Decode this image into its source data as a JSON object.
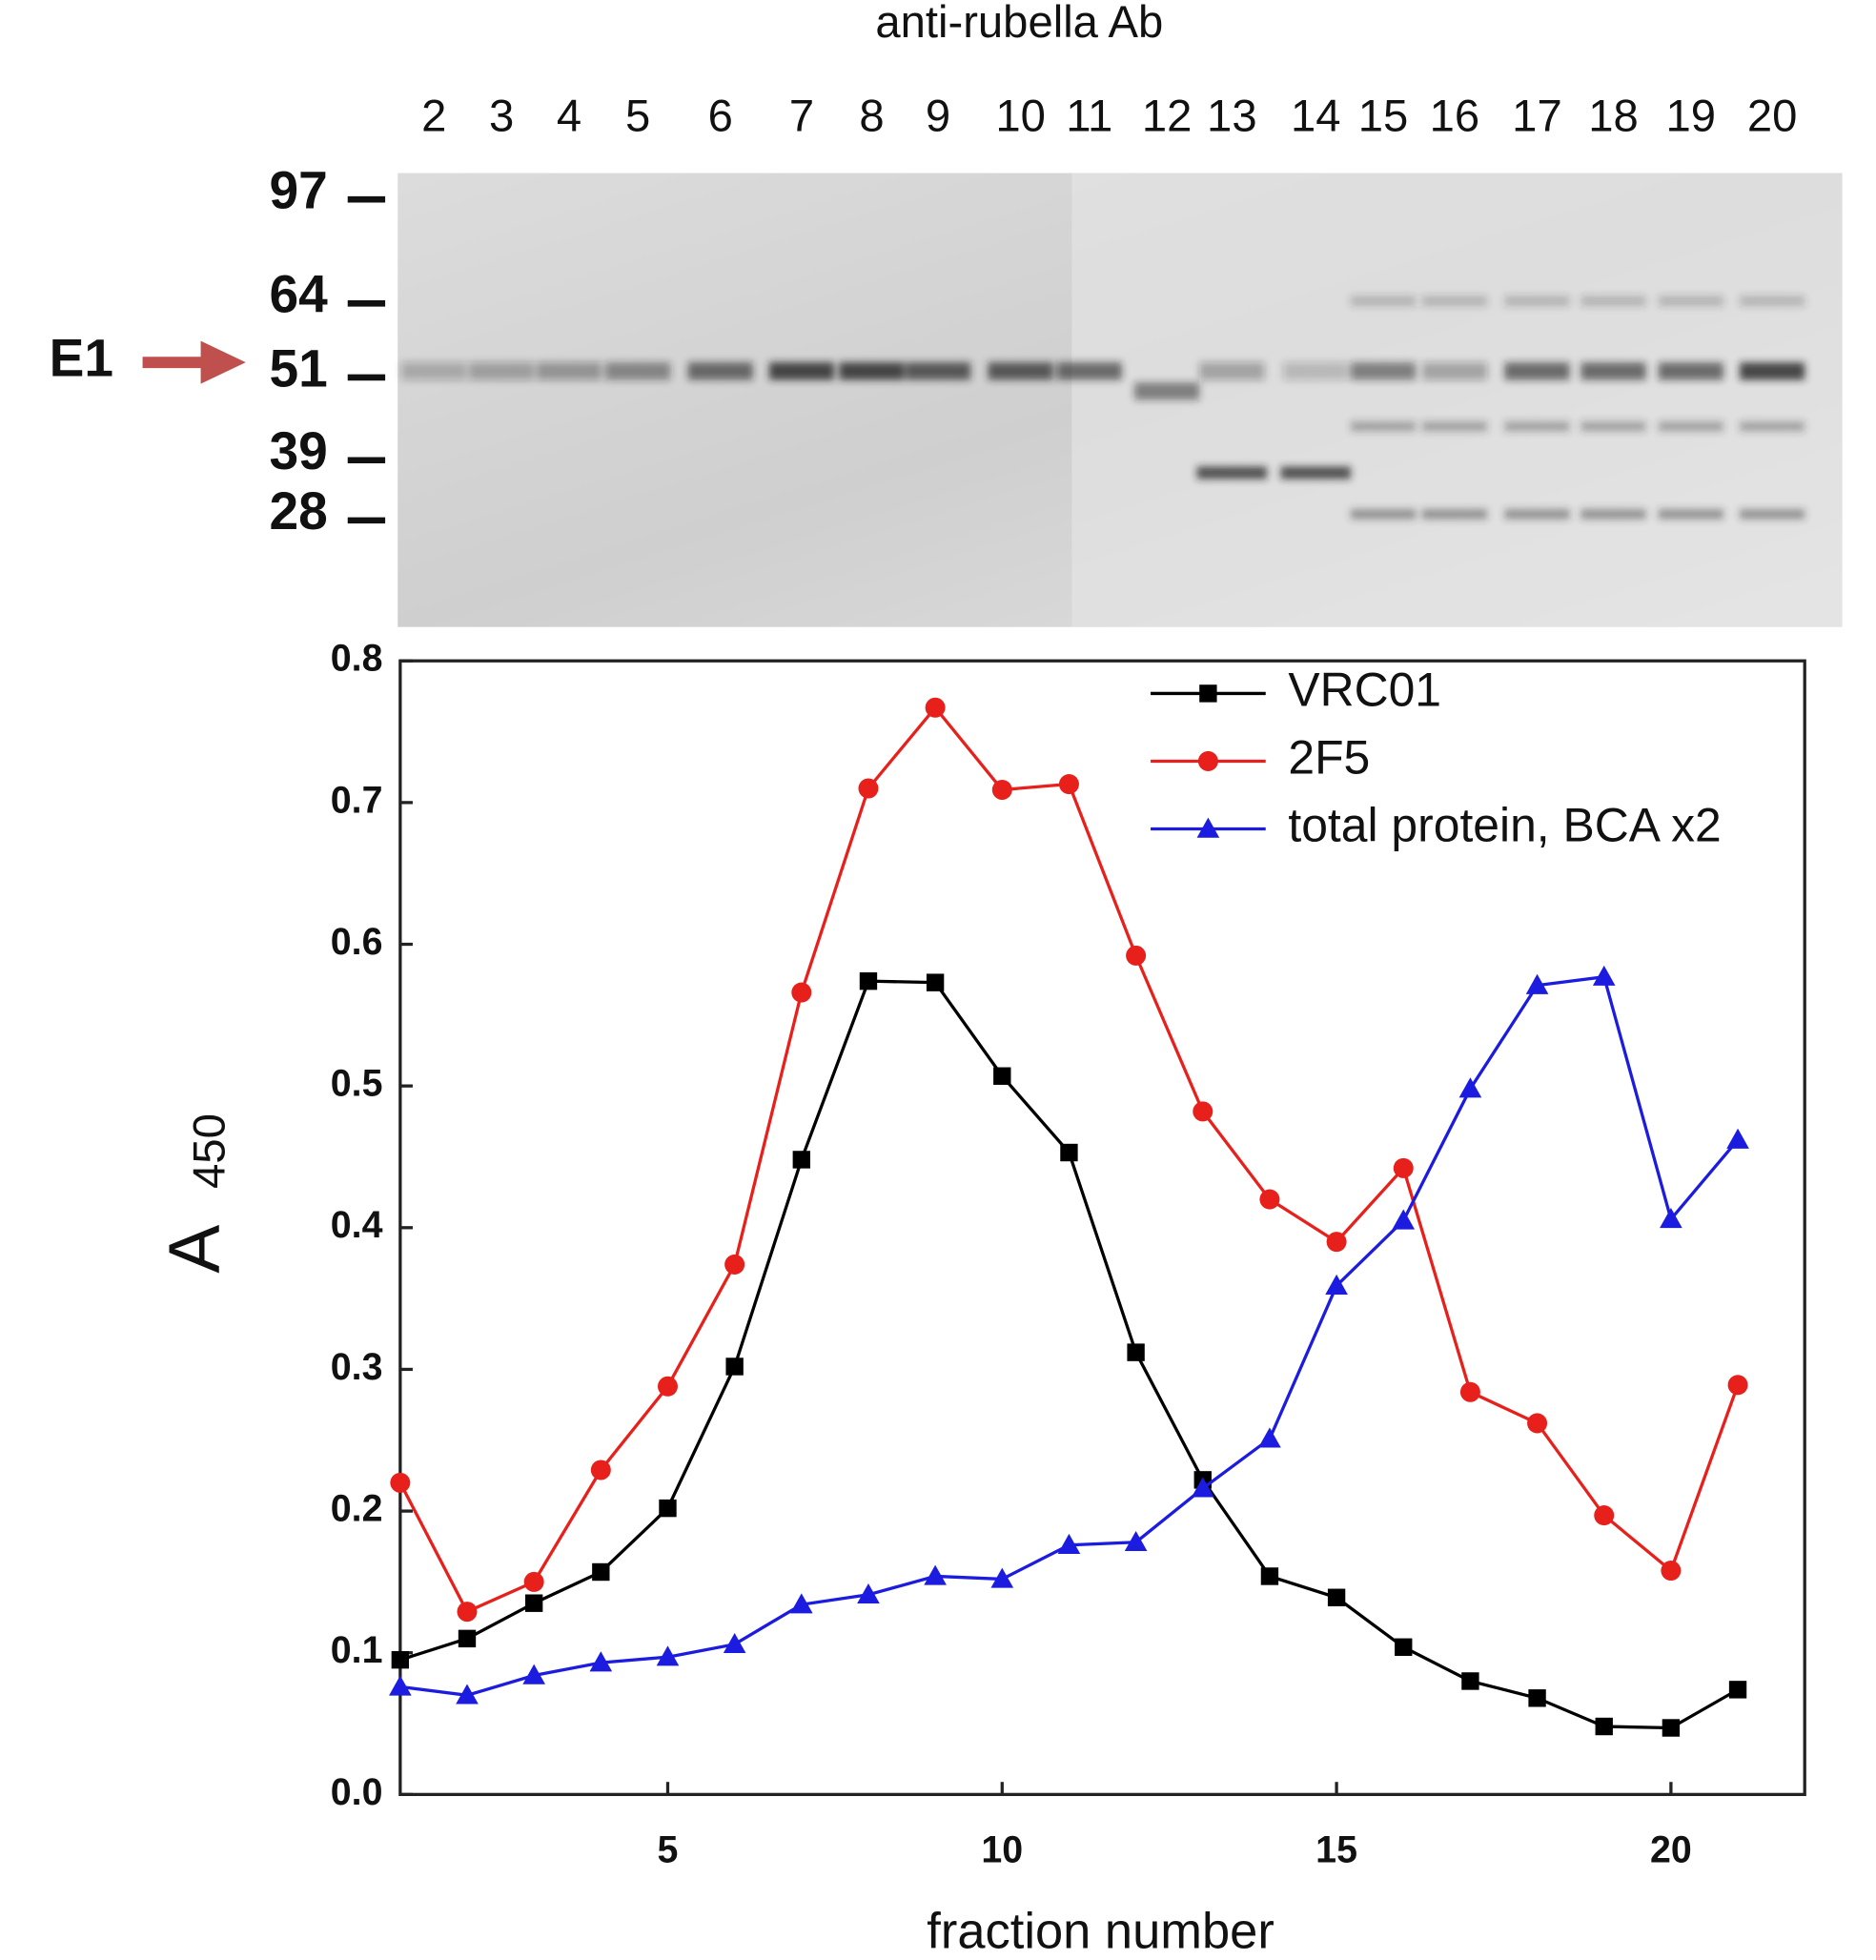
{
  "gel": {
    "title": "anti-rubella Ab",
    "lanes": [
      "2",
      "3",
      "4",
      "5",
      "6",
      "7",
      "8",
      "9",
      "10",
      "11",
      "12",
      "13",
      "14",
      "15",
      "16",
      "17",
      "18",
      "19",
      "20"
    ],
    "markers": [
      "97",
      "64",
      "51",
      "39",
      "28"
    ],
    "band_label": "E1"
  },
  "chart_data": {
    "type": "line",
    "xlabel": "fraction number",
    "ylabel": "A",
    "ylabel_sub": "450",
    "x": [
      1,
      2,
      3,
      4,
      5,
      6,
      7,
      8,
      9,
      10,
      11,
      12,
      13,
      14,
      15,
      16,
      17,
      18,
      19,
      20,
      21
    ],
    "series": [
      {
        "name": "VRC01",
        "color": "#000000",
        "marker": "square",
        "values": [
          0.095,
          0.11,
          0.135,
          0.157,
          0.202,
          0.302,
          0.448,
          0.574,
          0.573,
          0.507,
          0.453,
          0.312,
          0.222,
          0.154,
          0.139,
          0.104,
          0.08,
          0.068,
          0.048,
          0.047,
          0.074
        ]
      },
      {
        "name": "2F5",
        "color": "#e8201c",
        "marker": "circle",
        "values": [
          0.22,
          0.129,
          0.15,
          0.229,
          0.288,
          0.374,
          0.566,
          0.71,
          0.767,
          0.709,
          0.713,
          0.592,
          0.482,
          0.42,
          0.39,
          0.442,
          0.284,
          0.262,
          0.197,
          0.158,
          0.289
        ]
      },
      {
        "name": "total protein, BCA x2",
        "color": "#1c1ce0",
        "marker": "triangle",
        "values": [
          0.076,
          0.07,
          0.084,
          0.093,
          0.097,
          0.106,
          0.134,
          0.141,
          0.154,
          0.152,
          0.176,
          0.178,
          0.216,
          0.251,
          0.359,
          0.405,
          0.498,
          0.571,
          0.577,
          0.406,
          0.462
        ]
      }
    ],
    "xlim": [
      1,
      22
    ],
    "xticks": [
      5,
      10,
      15,
      20
    ],
    "ylim": [
      0,
      0.8
    ],
    "yticks": [
      {
        "value": 0,
        "label": "0.0"
      },
      0.1,
      0.2,
      0.3,
      0.4,
      0.5,
      0.6,
      0.7,
      0.8
    ],
    "legend": "upper right"
  }
}
